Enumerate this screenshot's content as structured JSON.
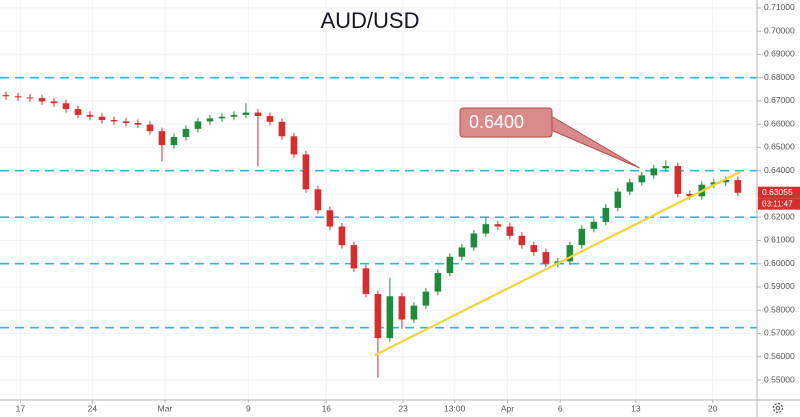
{
  "chart_data": {
    "type": "candlestick",
    "title": "AUD/USD",
    "up_color": "#1f8a3c",
    "down_color": "#d62d2d",
    "grid": true,
    "xlim": [
      0,
      63.1
    ],
    "xticks": [
      {
        "value": 1.7,
        "label": "17"
      },
      {
        "value": 7.7,
        "label": "24"
      },
      {
        "value": 13.75,
        "label": "Mar"
      },
      {
        "value": 20.7,
        "label": "9"
      },
      {
        "value": 27.2,
        "label": "16"
      },
      {
        "value": 33.6,
        "label": "23"
      },
      {
        "value": 37.9,
        "label": "13:00"
      },
      {
        "value": 42.3,
        "label": "Apr"
      },
      {
        "value": 46.7,
        "label": "6"
      },
      {
        "value": 53,
        "label": "13"
      },
      {
        "value": 59.4,
        "label": "20"
      }
    ],
    "ylim": [
      0.5414,
      0.7134
    ],
    "yticks": [
      {
        "value": 0.55,
        "label": "0.55000"
      },
      {
        "value": 0.56,
        "label": "0.56000"
      },
      {
        "value": 0.57,
        "label": "0.57000"
      },
      {
        "value": 0.58,
        "label": "0.58000"
      },
      {
        "value": 0.59,
        "label": "0.59000"
      },
      {
        "value": 0.6,
        "label": "0.60000"
      },
      {
        "value": 0.61,
        "label": "0.61000"
      },
      {
        "value": 0.62,
        "label": "0.62000"
      },
      {
        "value": 0.63,
        "label": "0.63000"
      },
      {
        "value": 0.64,
        "label": "0.64000"
      },
      {
        "value": 0.65,
        "label": "0.65000"
      },
      {
        "value": 0.66,
        "label": "0.66000"
      },
      {
        "value": 0.67,
        "label": "0.67000"
      },
      {
        "value": 0.68,
        "label": "0.68000"
      },
      {
        "value": 0.69,
        "label": "0.69000"
      },
      {
        "value": 0.7,
        "label": "0.70000"
      },
      {
        "value": 0.71,
        "label": "0.71000"
      }
    ],
    "x": [
      0.5,
      1.5,
      2.5,
      3.5,
      4.5,
      5.5,
      6.5,
      7.5,
      8.5,
      9.5,
      10.5,
      11.5,
      12.5,
      13.5,
      14.5,
      15.5,
      16.5,
      17.5,
      18.5,
      19.5,
      20.5,
      21.5,
      22.5,
      23.5,
      24.5,
      25.5,
      26.5,
      27.5,
      28.5,
      29.5,
      30.5,
      31.5,
      32.5,
      33.5,
      34.5,
      35.5,
      36.5,
      37.5,
      38.5,
      39.5,
      40.5,
      41.5,
      42.5,
      43.5,
      44.5,
      45.5,
      46.5,
      47.5,
      48.5,
      49.5,
      50.5,
      51.5,
      52.5,
      53.5,
      54.5,
      55.5,
      56.5,
      57.5,
      58.5,
      59.5,
      60.5,
      61.5
    ],
    "open": [
      0.6725,
      0.672,
      0.6715,
      0.6712,
      0.6698,
      0.669,
      0.6665,
      0.664,
      0.6632,
      0.6618,
      0.6612,
      0.6605,
      0.6598,
      0.657,
      0.651,
      0.6545,
      0.658,
      0.6612,
      0.6625,
      0.6632,
      0.664,
      0.665,
      0.6635,
      0.661,
      0.6548,
      0.647,
      0.632,
      0.623,
      0.616,
      0.608,
      0.598,
      0.587,
      0.568,
      0.586,
      0.576,
      0.582,
      0.588,
      0.596,
      0.603,
      0.607,
      0.613,
      0.617,
      0.616,
      0.612,
      0.608,
      0.605,
      0.6,
      0.601,
      0.608,
      0.615,
      0.618,
      0.624,
      0.631,
      0.635,
      0.638,
      0.641,
      0.642,
      0.63,
      0.629,
      0.634,
      0.635,
      0.636
    ],
    "high": [
      0.674,
      0.6735,
      0.673,
      0.6727,
      0.6713,
      0.6705,
      0.668,
      0.6655,
      0.6647,
      0.6633,
      0.6627,
      0.662,
      0.6613,
      0.6585,
      0.656,
      0.6595,
      0.6627,
      0.664,
      0.6647,
      0.6655,
      0.669,
      0.6665,
      0.665,
      0.6625,
      0.6563,
      0.6485,
      0.6335,
      0.6245,
      0.6175,
      0.6095,
      0.5995,
      0.5885,
      0.594,
      0.5875,
      0.5835,
      0.5895,
      0.5975,
      0.6045,
      0.6085,
      0.6145,
      0.62,
      0.6185,
      0.6175,
      0.6135,
      0.6095,
      0.6065,
      0.6025,
      0.6095,
      0.6165,
      0.6195,
      0.6255,
      0.6325,
      0.6365,
      0.6395,
      0.6425,
      0.6445,
      0.6435,
      0.6315,
      0.6355,
      0.6365,
      0.6375,
      0.6375
    ],
    "low": [
      0.6705,
      0.67,
      0.6697,
      0.6683,
      0.6675,
      0.665,
      0.6625,
      0.6617,
      0.6603,
      0.6597,
      0.659,
      0.6583,
      0.6555,
      0.644,
      0.6495,
      0.653,
      0.6565,
      0.6597,
      0.661,
      0.6617,
      0.6625,
      0.642,
      0.6595,
      0.6533,
      0.6455,
      0.6305,
      0.6215,
      0.6145,
      0.6065,
      0.5965,
      0.5855,
      0.551,
      0.5665,
      0.572,
      0.5745,
      0.5805,
      0.5865,
      0.5945,
      0.6015,
      0.6055,
      0.6115,
      0.6145,
      0.6105,
      0.6065,
      0.6035,
      0.5985,
      0.5985,
      0.5995,
      0.6065,
      0.6135,
      0.6165,
      0.6225,
      0.6295,
      0.6335,
      0.6365,
      0.6395,
      0.6285,
      0.6275,
      0.6275,
      0.6325,
      0.6335,
      0.629
    ],
    "close": [
      0.672,
      0.6715,
      0.6712,
      0.6698,
      0.669,
      0.6665,
      0.664,
      0.6632,
      0.6618,
      0.6612,
      0.6605,
      0.6598,
      0.657,
      0.651,
      0.6545,
      0.658,
      0.6612,
      0.6625,
      0.6632,
      0.664,
      0.665,
      0.6635,
      0.661,
      0.6548,
      0.647,
      0.632,
      0.623,
      0.616,
      0.608,
      0.598,
      0.587,
      0.568,
      0.586,
      0.576,
      0.582,
      0.588,
      0.596,
      0.603,
      0.607,
      0.613,
      0.617,
      0.616,
      0.612,
      0.608,
      0.605,
      0.6,
      0.601,
      0.608,
      0.615,
      0.618,
      0.624,
      0.631,
      0.635,
      0.638,
      0.641,
      0.642,
      0.63,
      0.629,
      0.634,
      0.635,
      0.636,
      0.6305
    ],
    "hlines": {
      "color": "#2fb8d6",
      "values": [
        0.68,
        0.64,
        0.62,
        0.6,
        0.5725
      ]
    },
    "trendline": {
      "color": "#f5d33a",
      "x": [
        31.25,
        61.7
      ],
      "y": [
        0.5607,
        0.6395
      ]
    },
    "annotation": {
      "text": "0.6400",
      "x": 53.3,
      "y": 0.6412
    },
    "last_price": {
      "value": 0.63055,
      "label": "0.63055",
      "countdown": "03:11:47"
    }
  }
}
